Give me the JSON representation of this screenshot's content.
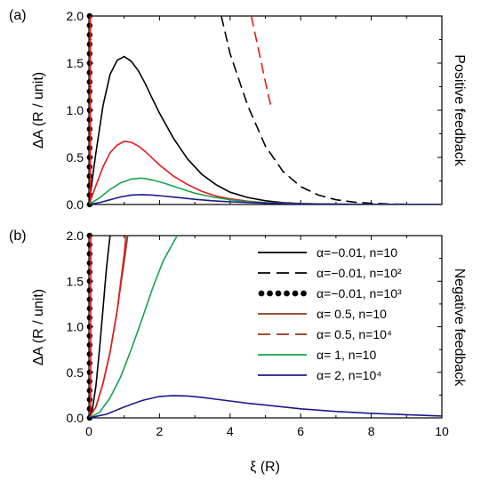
{
  "chart_data": [
    {
      "panel_label": "(a)",
      "type": "line",
      "side_label": "Positive feedback",
      "ylabel": "ΔA (R / unit)",
      "xlim": [
        0,
        10
      ],
      "ylim": [
        0,
        2.0
      ],
      "yticks": [
        "0.0",
        "0.5",
        "1.0",
        "1.5",
        "2.0"
      ],
      "series": [
        {
          "style": "solid",
          "color": "#000000",
          "x": [
            0,
            0.2,
            0.4,
            0.6,
            0.8,
            1.0,
            1.2,
            1.4,
            1.6,
            1.8,
            2.0,
            2.4,
            2.8,
            3.2,
            3.6,
            4.0,
            4.5,
            5.0,
            5.5,
            6.0,
            7.0,
            8.0,
            10.0
          ],
          "y": [
            0,
            0.55,
            1.05,
            1.38,
            1.53,
            1.57,
            1.52,
            1.42,
            1.28,
            1.12,
            0.97,
            0.7,
            0.48,
            0.32,
            0.21,
            0.13,
            0.075,
            0.04,
            0.02,
            0.01,
            0.003,
            0.001,
            0
          ]
        },
        {
          "style": "dashed",
          "color": "#000000",
          "x": [
            3.75,
            4.0,
            4.5,
            5.0,
            5.5,
            6.0,
            6.5,
            7.0,
            7.5,
            8.0,
            8.5,
            9.0,
            9.5,
            10.0
          ],
          "y": [
            2.0,
            1.6,
            1.05,
            0.62,
            0.35,
            0.19,
            0.1,
            0.05,
            0.025,
            0.012,
            0.006,
            0.003,
            0.001,
            0
          ]
        },
        {
          "style": "dots",
          "color": "#000000",
          "x": [
            0.02,
            0.02,
            0.02,
            0.02,
            0.02,
            0.02,
            0.02,
            0.02,
            0.02,
            0.02,
            0.02,
            0.02,
            0.02,
            0.02,
            0.02,
            0.02,
            0.02,
            0.02,
            0.02,
            0.02,
            0.02
          ],
          "y": [
            0.0,
            0.1,
            0.2,
            0.3,
            0.4,
            0.5,
            0.6,
            0.7,
            0.8,
            0.9,
            1.0,
            1.1,
            1.2,
            1.3,
            1.4,
            1.5,
            1.6,
            1.7,
            1.8,
            1.9,
            2.0
          ]
        },
        {
          "style": "dashed",
          "color": "#e41a1c",
          "x": [
            4.6,
            4.8,
            5.0,
            5.15
          ],
          "y": [
            2.0,
            1.65,
            1.3,
            1.05
          ]
        },
        {
          "style": "solid",
          "color": "#e41a1c",
          "x": [
            0,
            0.2,
            0.4,
            0.6,
            0.8,
            1.0,
            1.2,
            1.4,
            1.6,
            1.8,
            2.0,
            2.4,
            2.8,
            3.2,
            3.6,
            4.0,
            4.5,
            5.0,
            6.0,
            7.0,
            8.0,
            10.0
          ],
          "y": [
            0,
            0.2,
            0.4,
            0.55,
            0.63,
            0.67,
            0.66,
            0.62,
            0.56,
            0.49,
            0.42,
            0.3,
            0.21,
            0.14,
            0.09,
            0.06,
            0.035,
            0.02,
            0.008,
            0.003,
            0.001,
            0
          ]
        },
        {
          "style": "solid",
          "color": "#e41a1c",
          "x": [
            0.04,
            0.04
          ],
          "y": [
            0,
            2.0
          ]
        },
        {
          "style": "solid",
          "color": "#1aa34a",
          "x": [
            0,
            0.3,
            0.6,
            0.9,
            1.2,
            1.5,
            1.8,
            2.1,
            2.5,
            3.0,
            3.5,
            4.0,
            4.5,
            5.0,
            6.0,
            7.0,
            8.0,
            10.0
          ],
          "y": [
            0,
            0.07,
            0.16,
            0.23,
            0.27,
            0.28,
            0.26,
            0.23,
            0.18,
            0.12,
            0.08,
            0.05,
            0.03,
            0.018,
            0.008,
            0.003,
            0.001,
            0
          ]
        },
        {
          "style": "solid",
          "color": "#1a1a8c",
          "x": [
            0,
            0.3,
            0.6,
            0.9,
            1.2,
            1.5,
            1.8,
            2.1,
            2.5,
            3.0,
            3.5,
            4.0,
            5.0,
            6.0,
            8.0,
            10.0
          ],
          "y": [
            0,
            0.02,
            0.05,
            0.08,
            0.1,
            0.105,
            0.1,
            0.09,
            0.075,
            0.055,
            0.04,
            0.028,
            0.013,
            0.006,
            0.001,
            0
          ]
        }
      ]
    },
    {
      "panel_label": "(b)",
      "type": "line",
      "side_label": "Negative feedback",
      "ylabel": "ΔA (R / unit)",
      "xlabel": "ξ (R)",
      "xlim": [
        0,
        10
      ],
      "ylim": [
        0,
        2.0
      ],
      "xticks": [
        "0",
        "2",
        "4",
        "6",
        "8",
        "10"
      ],
      "yticks": [
        "0.0",
        "0.5",
        "1.0",
        "1.5",
        "2.0"
      ],
      "series": [
        {
          "style": "dots",
          "color": "#000000",
          "x": [
            0.02,
            0.02,
            0.02,
            0.02,
            0.02,
            0.02,
            0.02,
            0.02,
            0.02,
            0.02,
            0.02,
            0.02,
            0.02,
            0.02,
            0.02,
            0.02,
            0.02,
            0.02,
            0.02,
            0.02,
            0.02
          ],
          "y": [
            0.0,
            0.1,
            0.2,
            0.3,
            0.4,
            0.5,
            0.6,
            0.7,
            0.8,
            0.9,
            1.0,
            1.1,
            1.2,
            1.3,
            1.4,
            1.5,
            1.6,
            1.7,
            1.8,
            1.9,
            2.0
          ]
        },
        {
          "style": "solid",
          "color": "#e41a1c",
          "x": [
            0.05,
            0.05
          ],
          "y": [
            0,
            2.0
          ]
        },
        {
          "style": "solid",
          "color": "#000000",
          "x": [
            0,
            0.1,
            0.2,
            0.3,
            0.4,
            0.5,
            0.6
          ],
          "y": [
            0,
            0.1,
            0.35,
            0.75,
            1.2,
            1.65,
            2.0
          ]
        },
        {
          "style": "solid",
          "color": "#8b3a1a",
          "x": [
            0,
            0.2,
            0.4,
            0.6,
            0.8,
            1.0,
            1.1
          ],
          "y": [
            0,
            0.12,
            0.38,
            0.72,
            1.18,
            1.72,
            2.0
          ]
        },
        {
          "style": "solid",
          "color": "#e41a1c",
          "x": [
            0,
            0.2,
            0.4,
            0.6,
            0.8,
            1.0,
            1.05
          ],
          "y": [
            0,
            0.12,
            0.38,
            0.72,
            1.18,
            1.8,
            2.0
          ]
        },
        {
          "style": "solid",
          "color": "#1aa34a",
          "x": [
            0,
            0.3,
            0.6,
            0.9,
            1.2,
            1.5,
            1.8,
            2.1,
            2.5
          ],
          "y": [
            0,
            0.06,
            0.22,
            0.45,
            0.75,
            1.08,
            1.42,
            1.72,
            2.0
          ]
        },
        {
          "style": "solid",
          "color": "#1a1a8c",
          "x": [
            0,
            0.5,
            1.0,
            1.5,
            2.0,
            2.4,
            2.8,
            3.2,
            3.6,
            4.0,
            4.5,
            5.0,
            6.0,
            7.0,
            8.0,
            9.0,
            10.0
          ],
          "y": [
            0,
            0.04,
            0.12,
            0.19,
            0.235,
            0.245,
            0.24,
            0.225,
            0.205,
            0.185,
            0.16,
            0.14,
            0.1,
            0.07,
            0.05,
            0.035,
            0.02
          ]
        }
      ],
      "legend": {
        "placement": "top-right",
        "entries": [
          {
            "label": "α=−0.01, n=10",
            "style": "solid",
            "color": "#000000"
          },
          {
            "label": "α=−0.01, n=10²",
            "style": "dashed",
            "color": "#000000"
          },
          {
            "label": "α=−0.01, n=10³",
            "style": "dots",
            "color": "#000000"
          },
          {
            "label": "α= 0.5, n=10",
            "style": "solid",
            "color": "#8b3a1a"
          },
          {
            "label": "α= 0.5, n=10⁴",
            "style": "dashed",
            "color": "#8b3a1a"
          },
          {
            "label": "α= 1, n=10",
            "style": "solid",
            "color": "#1aa34a"
          },
          {
            "label": "α= 2, n=10⁴",
            "style": "solid",
            "color": "#1a1a8c"
          }
        ]
      }
    }
  ]
}
